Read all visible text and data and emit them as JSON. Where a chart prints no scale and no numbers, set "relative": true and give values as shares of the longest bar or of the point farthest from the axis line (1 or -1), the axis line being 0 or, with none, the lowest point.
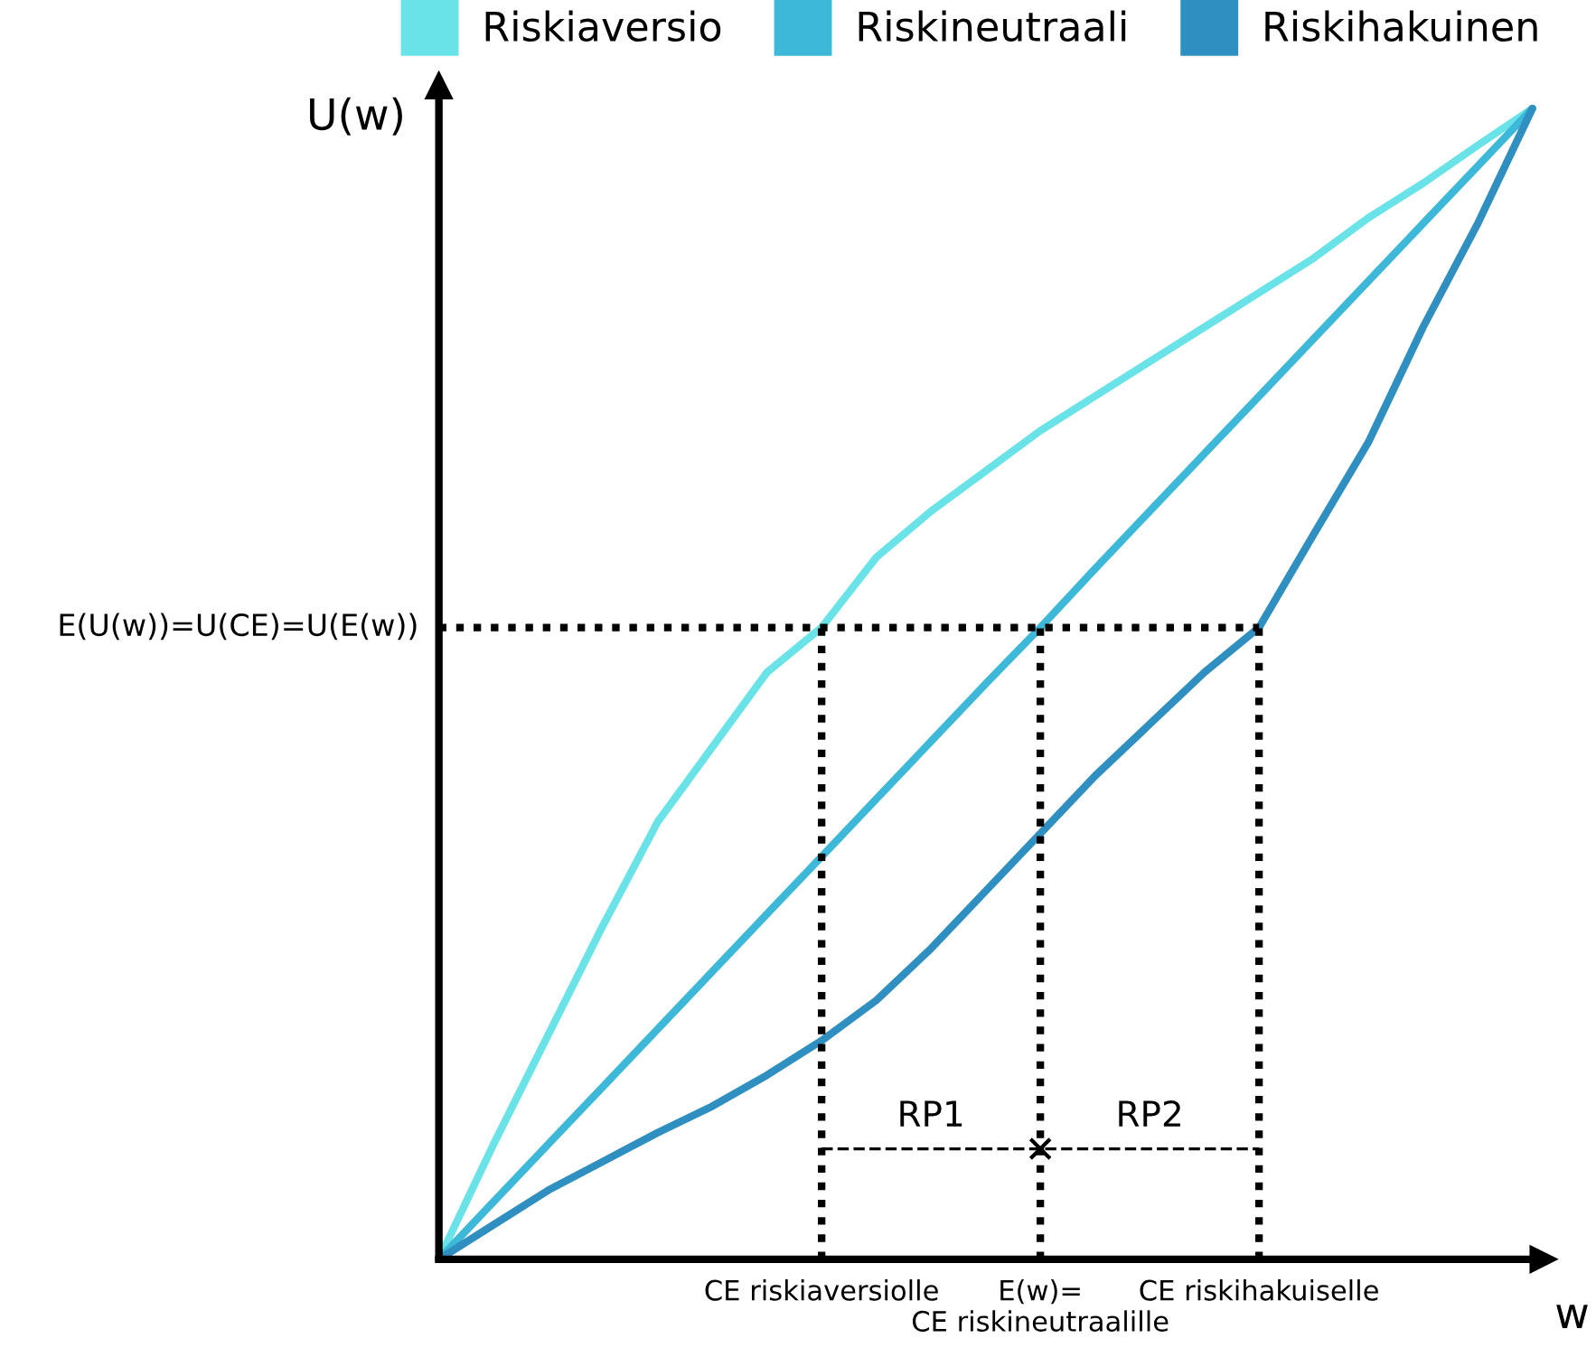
{
  "chart_data": {
    "type": "line",
    "relative": true,
    "xlabel": "w",
    "ylabel": "U(w)",
    "categories": [
      null,
      null,
      null,
      null,
      null,
      null,
      null,
      "CE riskiaversiolle",
      null,
      null,
      null,
      "E(w)=\nCE riskineutraalille",
      null,
      null,
      null,
      "CE riskihakuiselle",
      null,
      null,
      null,
      null,
      null
    ],
    "tick_labels": "x",
    "legend": "top right",
    "line_style": "solid",
    "marker": "none",
    "series": [
      {
        "name": "Riskiaversio",
        "color": "#6ae3e8",
        "values": [
          0,
          0.1,
          0.195,
          0.29,
          0.38,
          0.445,
          0.51,
          0.549,
          0.61,
          0.65,
          0.685,
          0.72,
          0.75,
          0.78,
          0.81,
          0.84,
          0.87,
          0.905,
          0.935,
          0.968,
          1
        ]
      },
      {
        "name": "Riskineutraali",
        "color": "#3eb8d8",
        "values": [
          0,
          0.05,
          0.1,
          0.15,
          0.2,
          0.25,
          0.3,
          0.35,
          0.4,
          0.45,
          0.5,
          0.549,
          0.6,
          0.65,
          0.7,
          0.75,
          0.8,
          0.85,
          0.9,
          0.95,
          1
        ]
      },
      {
        "name": "Riskihakuinen",
        "color": "#2e8fc0",
        "values": [
          0,
          0.03,
          0.06,
          0.085,
          0.11,
          0.133,
          0.16,
          0.19,
          0.225,
          0.27,
          0.32,
          0.37,
          0.42,
          0.465,
          0.51,
          0.549,
          0.63,
          0.71,
          0.81,
          0.9,
          1
        ]
      },
      {
        "color": "#000000",
        "line_style": "dashed",
        "values": [
          null,
          null,
          null,
          null,
          null,
          null,
          null,
          0.096,
          0.096,
          0.096,
          0.096,
          0.096,
          0.096,
          0.096,
          0.096,
          0.096,
          null,
          null,
          null,
          null,
          null
        ]
      },
      {
        "type": "scatter",
        "color": "#000000",
        "marker": "cross",
        "values": [
          null,
          null,
          null,
          null,
          null,
          null,
          null,
          null,
          null,
          null,
          null,
          0.096,
          null,
          null,
          null,
          null,
          null,
          null,
          null,
          null,
          null
        ]
      }
    ],
    "ref_lines": [
      {
        "axis": "y",
        "value": 0.549,
        "label": "E(U(w))=U(CE)=U(E(w))",
        "color": "#000000",
        "line_style": "dotted"
      },
      {
        "axis": "x",
        "value": "CE riskiaversiolle",
        "color": "#000000",
        "line_style": "dotted"
      },
      {
        "axis": "x",
        "value": "E(w)=\nCE riskineutraalille",
        "color": "#000000",
        "line_style": "dotted"
      },
      {
        "axis": "x",
        "value": "CE riskihakuiselle",
        "color": "#000000",
        "line_style": "dotted"
      }
    ],
    "annotations": [
      {
        "text": "RP1",
        "y": 0.096
      },
      {
        "text": "RP2",
        "y": 0.096
      }
    ]
  }
}
